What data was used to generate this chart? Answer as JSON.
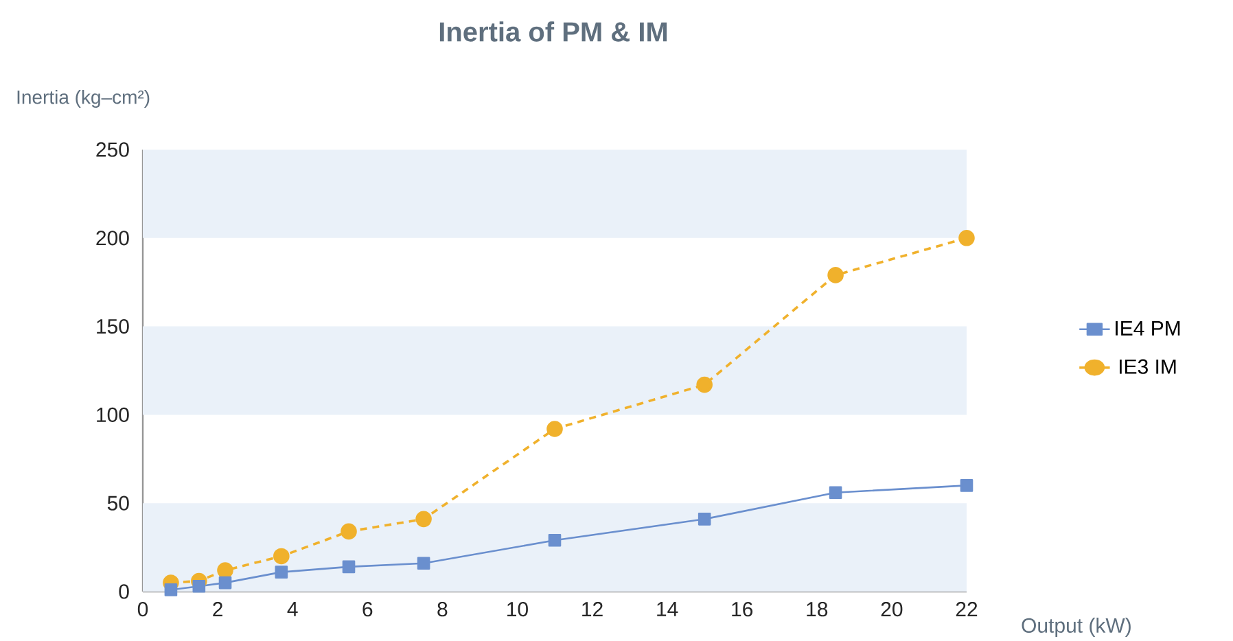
{
  "chart_data": {
    "type": "line",
    "title": "Inertia of PM & IM",
    "xlabel": "Output (kW)",
    "ylabel": "Inertia (kg–cm²)",
    "x": [
      0.75,
      1.5,
      2.2,
      3.7,
      5.5,
      7.5,
      11,
      15,
      18.5,
      22
    ],
    "series": [
      {
        "name": "IE4 PM",
        "color": "#6a8fce",
        "marker": "square",
        "line_style": "solid",
        "values": [
          1,
          3,
          5,
          11,
          14,
          16,
          29,
          41,
          56,
          60
        ]
      },
      {
        "name": "IE3 IM",
        "color": "#f0b12c",
        "marker": "circle",
        "line_style": "dashed",
        "values": [
          5,
          6,
          12,
          20,
          34,
          41,
          92,
          117,
          179,
          200
        ]
      }
    ],
    "xlim": [
      0,
      22
    ],
    "xticks": [
      0,
      2,
      4,
      6,
      8,
      10,
      12,
      14,
      16,
      18,
      20,
      22
    ],
    "ylim": [
      0,
      250
    ],
    "yticks": [
      0,
      50,
      100,
      150,
      200,
      250
    ],
    "bands": [
      {
        "axis": "y",
        "from": 0,
        "to": 50,
        "color": "#eaf1f9"
      },
      {
        "axis": "y",
        "from": 100,
        "to": 150,
        "color": "#eaf1f9"
      },
      {
        "axis": "y",
        "from": 200,
        "to": 250,
        "color": "#eaf1f9"
      }
    ],
    "legend": "right"
  }
}
